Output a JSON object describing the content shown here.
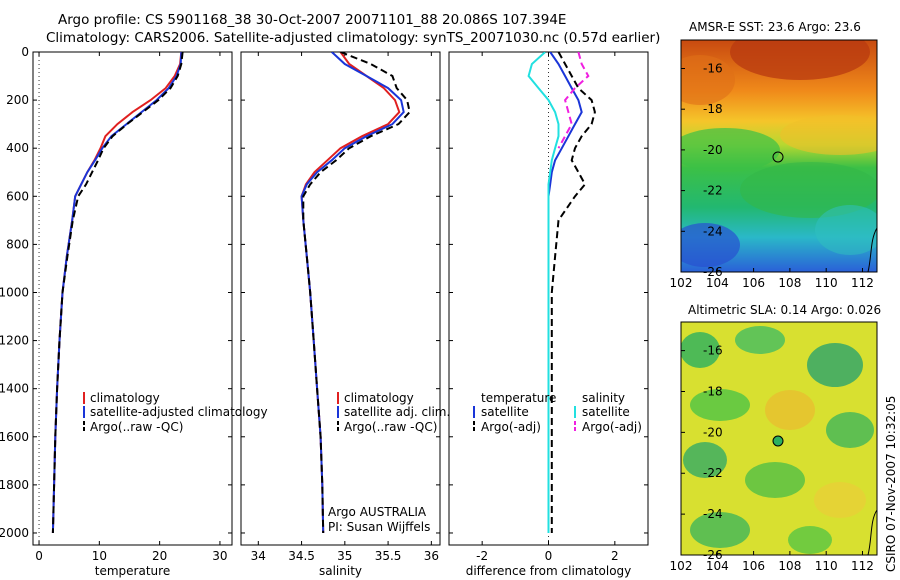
{
  "header": {
    "line1": "Argo profile: CS 5901168_38 30-Oct-2007 20071101_88 20.086S 107.394E",
    "line2": "Climatology: CARS2006. Satellite-adjusted climatology: synTS_20071030.nc (0.57d earlier)"
  },
  "colors": {
    "clim": "#e02020",
    "sat": "#1a35d8",
    "argo": "#000000",
    "sal_sat": "#22e0e0",
    "sal_argo": "#f020e0"
  },
  "chart_data": [
    {
      "type": "line",
      "name": "temperature-profile",
      "xlabel": "temperature",
      "ylabel": "",
      "xlim": [
        -1,
        32
      ],
      "ylim": [
        2050,
        0
      ],
      "xticks": [
        0,
        10,
        20,
        30
      ],
      "yticks": [
        0,
        200,
        400,
        600,
        800,
        1000,
        1200,
        1400,
        1600,
        1800,
        2000
      ],
      "legend": [
        "climatology",
        "satellite-adjusted climatology",
        "Argo(..raw -QC)"
      ],
      "series": [
        {
          "name": "climatology",
          "color": "#e02020",
          "dash": "",
          "x": [
            23.6,
            23.4,
            22.5,
            21.0,
            18.5,
            15.5,
            13.0,
            11.0,
            10.2,
            9.2,
            8.0,
            7.0,
            6.0,
            5.5,
            4.6,
            3.9,
            3.4,
            3.0,
            2.7,
            2.5,
            2.3
          ],
          "y": [
            0,
            50,
            100,
            150,
            200,
            250,
            300,
            350,
            400,
            450,
            500,
            550,
            600,
            700,
            850,
            1000,
            1200,
            1400,
            1600,
            1800,
            2000
          ]
        },
        {
          "name": "satellite-adjusted climatology",
          "color": "#1a35d8",
          "dash": "",
          "x": [
            23.6,
            23.5,
            22.8,
            21.5,
            19.5,
            17.0,
            14.5,
            12.0,
            10.5,
            9.3,
            8.0,
            7.0,
            6.0,
            5.5,
            4.6,
            3.9,
            3.4,
            3.0,
            2.7,
            2.5,
            2.3
          ],
          "y": [
            0,
            50,
            100,
            150,
            200,
            250,
            300,
            350,
            400,
            450,
            500,
            550,
            600,
            700,
            850,
            1000,
            1200,
            1400,
            1600,
            1800,
            2000
          ]
        },
        {
          "name": "Argo(..raw -QC)",
          "color": "#000000",
          "dash": "7,4",
          "x": [
            23.8,
            23.6,
            23.0,
            21.8,
            19.8,
            17.2,
            14.6,
            12.2,
            10.7,
            9.8,
            8.8,
            7.8,
            6.5,
            5.6,
            4.7,
            3.9,
            3.4,
            3.0,
            2.7,
            2.5,
            2.3
          ],
          "y": [
            0,
            50,
            100,
            150,
            200,
            250,
            300,
            350,
            400,
            450,
            500,
            550,
            600,
            700,
            850,
            1000,
            1200,
            1400,
            1600,
            1800,
            2000
          ]
        }
      ]
    },
    {
      "type": "line",
      "name": "salinity-profile",
      "xlabel": "salinity",
      "ylabel": "",
      "xlim": [
        33.8,
        36.1
      ],
      "ylim": [
        2050,
        0
      ],
      "xticks": [
        34,
        34.5,
        35,
        35.5,
        36
      ],
      "yticks": [
        0,
        200,
        400,
        600,
        800,
        1000,
        1200,
        1400,
        1600,
        1800,
        2000
      ],
      "legend": [
        "climatology",
        "satellite adj. clim.",
        "Argo(..raw -QC)"
      ],
      "annotation": [
        "Argo AUSTRALIA",
        "PI: Susan Wijffels"
      ],
      "series": [
        {
          "name": "climatology",
          "color": "#e02020",
          "dash": "",
          "x": [
            34.95,
            35.05,
            35.25,
            35.45,
            35.58,
            35.63,
            35.5,
            35.2,
            34.95,
            34.8,
            34.65,
            34.55,
            34.5,
            34.52,
            34.56,
            34.6,
            34.64,
            34.68,
            34.72,
            34.74,
            34.75
          ],
          "y": [
            0,
            50,
            100,
            150,
            200,
            250,
            300,
            350,
            400,
            450,
            500,
            550,
            600,
            700,
            850,
            1000,
            1200,
            1400,
            1600,
            1800,
            2000
          ]
        },
        {
          "name": "satellite adj. clim.",
          "color": "#1a35d8",
          "dash": "",
          "x": [
            34.85,
            35.0,
            35.25,
            35.5,
            35.65,
            35.68,
            35.55,
            35.25,
            35.0,
            34.85,
            34.68,
            34.56,
            34.5,
            34.52,
            34.56,
            34.6,
            34.64,
            34.68,
            34.72,
            34.74,
            34.75
          ],
          "y": [
            0,
            50,
            100,
            150,
            200,
            250,
            300,
            350,
            400,
            450,
            500,
            550,
            600,
            700,
            850,
            1000,
            1200,
            1400,
            1600,
            1800,
            2000
          ]
        },
        {
          "name": "Argo(..raw -QC)",
          "color": "#000000",
          "dash": "7,4",
          "x": [
            34.95,
            35.3,
            35.55,
            35.6,
            35.72,
            35.75,
            35.62,
            35.3,
            35.05,
            34.9,
            34.72,
            34.6,
            34.52,
            34.52,
            34.56,
            34.6,
            34.64,
            34.68,
            34.72,
            34.74,
            34.75
          ],
          "y": [
            0,
            50,
            100,
            150,
            200,
            250,
            300,
            350,
            400,
            450,
            500,
            550,
            600,
            700,
            850,
            1000,
            1200,
            1400,
            1600,
            1800,
            2000
          ]
        }
      ]
    },
    {
      "type": "line",
      "name": "difference-profile",
      "xlabel": "difference from climatology",
      "ylabel": "",
      "xlim": [
        -3,
        3
      ],
      "ylim": [
        2050,
        0
      ],
      "xticks": [
        -2,
        0,
        2
      ],
      "yticks": [
        0,
        200,
        400,
        600,
        800,
        1000,
        1200,
        1400,
        1600,
        1800,
        2000
      ],
      "legend_headers": [
        "temperature",
        "salinity"
      ],
      "legend": [
        "satellite",
        "Argo(-adj)",
        "satellite",
        "Argo(-adj)"
      ],
      "series": [
        {
          "name": "temperature satellite",
          "color": "#1a35d8",
          "dash": "",
          "x": [
            0.05,
            0.3,
            0.5,
            0.7,
            0.9,
            1.0,
            0.8,
            0.6,
            0.4,
            0.2,
            0.1,
            0.05,
            0.0,
            0.0,
            0.0,
            0.0,
            0.0,
            0.0,
            0.0,
            0.0,
            0.0
          ],
          "y": [
            0,
            50,
            100,
            150,
            200,
            250,
            300,
            350,
            400,
            450,
            500,
            550,
            600,
            700,
            850,
            1000,
            1200,
            1400,
            1600,
            1800,
            2000
          ]
        },
        {
          "name": "temperature Argo(-adj)",
          "color": "#000000",
          "dash": "7,4",
          "x": [
            0.3,
            0.5,
            0.7,
            0.9,
            1.3,
            1.4,
            1.3,
            1.0,
            0.8,
            0.7,
            0.9,
            1.1,
            0.8,
            0.3,
            0.2,
            0.1,
            0.1,
            0.1,
            0.1,
            0.1,
            0.1
          ],
          "y": [
            0,
            50,
            100,
            150,
            200,
            250,
            300,
            350,
            400,
            450,
            500,
            550,
            600,
            700,
            850,
            1000,
            1200,
            1400,
            1600,
            1800,
            2000
          ]
        },
        {
          "name": "salinity satellite",
          "color": "#22e0e0",
          "dash": "",
          "x": [
            -0.1,
            -0.5,
            -0.6,
            -0.3,
            0.0,
            0.2,
            0.3,
            0.3,
            0.2,
            0.1,
            0.05,
            0.0,
            0.0,
            0.0,
            0.0,
            0.0,
            0.0,
            0.0,
            0.0,
            0.0,
            0.0
          ],
          "y": [
            0,
            50,
            100,
            150,
            200,
            250,
            300,
            350,
            400,
            450,
            500,
            550,
            600,
            700,
            850,
            1000,
            1200,
            1400,
            1600,
            1800,
            2000
          ]
        },
        {
          "name": "salinity Argo(-adj)",
          "color": "#f020e0",
          "dash": "7,4",
          "x": [
            0.9,
            1.0,
            1.2,
            0.8,
            0.5,
            0.6,
            0.7,
            0.5,
            0.3
          ],
          "y": [
            0,
            50,
            100,
            150,
            200,
            250,
            300,
            350,
            400
          ]
        }
      ]
    }
  ],
  "maps": {
    "sst": {
      "title": "AMSR-E SST: 23.6 Argo: 23.6",
      "xticks": [
        "102",
        "104",
        "106",
        "108",
        "110",
        "112"
      ],
      "yticks": [
        "-16",
        "-18",
        "-20",
        "-22",
        "-24",
        "-26"
      ]
    },
    "sla": {
      "title": "Altimetric SLA: 0.14 Argo: 0.026",
      "xticks": [
        "102",
        "104",
        "106",
        "108",
        "110",
        "112"
      ],
      "yticks": [
        "-16",
        "-18",
        "-20",
        "-22",
        "-24",
        "-26"
      ]
    },
    "argo_position": {
      "lon": 107.394,
      "lat": -20.086
    },
    "xlim": [
      102,
      112.8
    ],
    "ylim": [
      -26,
      -14.6
    ]
  },
  "footer": {
    "timestamp": "CSIRO 07-Nov-2007 10:32:05"
  }
}
